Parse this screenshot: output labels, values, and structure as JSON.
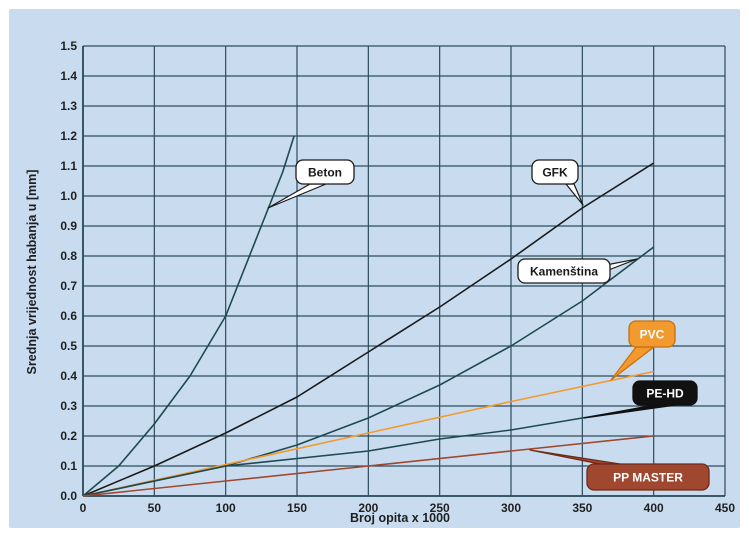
{
  "colors": {
    "background": "#c9dcef",
    "grid": "#2d4b5a",
    "dark_teal": "#1e4a4f",
    "black": "#1a1a1a",
    "pvc_orange": "#f39a2e",
    "pp_brown": "#a0472f",
    "callout_white": "#ffffff",
    "callout_black": "#111111"
  },
  "chart_data": {
    "type": "line",
    "xlabel": "Broj opita x 1000",
    "ylabel": "Srednja vrijednost habanja u [mm]",
    "xlim": [
      0,
      450
    ],
    "ylim": [
      0,
      1.5
    ],
    "x_ticks": [
      "0",
      "50",
      "100",
      "150",
      "200",
      "250",
      "300",
      "350",
      "400",
      "450"
    ],
    "y_ticks": [
      "0.0",
      "0.1",
      "0.2",
      "0.3",
      "0.4",
      "0.5",
      "0.6",
      "0.7",
      "0.8",
      "0.9",
      "1.0",
      "1.1",
      "1.2",
      "1.3",
      "1.4",
      "1.5"
    ],
    "grid": true,
    "series": [
      {
        "name": "Beton",
        "color": "#1e4a4f",
        "points": [
          [
            0,
            0
          ],
          [
            25,
            0.1
          ],
          [
            50,
            0.24
          ],
          [
            75,
            0.4
          ],
          [
            100,
            0.6
          ],
          [
            125,
            0.9
          ],
          [
            140,
            1.08
          ],
          [
            148,
            1.2
          ]
        ]
      },
      {
        "name": "GFK",
        "color": "#1a1a1a",
        "points": [
          [
            0,
            0
          ],
          [
            50,
            0.1
          ],
          [
            100,
            0.21
          ],
          [
            150,
            0.33
          ],
          [
            200,
            0.48
          ],
          [
            250,
            0.63
          ],
          [
            300,
            0.79
          ],
          [
            350,
            0.96
          ],
          [
            400,
            1.11
          ]
        ]
      },
      {
        "name": "Kamenština",
        "color": "#1e4a4f",
        "points": [
          [
            0,
            0
          ],
          [
            50,
            0.05
          ],
          [
            100,
            0.1
          ],
          [
            150,
            0.17
          ],
          [
            200,
            0.26
          ],
          [
            250,
            0.37
          ],
          [
            300,
            0.5
          ],
          [
            350,
            0.65
          ],
          [
            400,
            0.83
          ]
        ]
      },
      {
        "name": "PVC",
        "color": "#f39a2e",
        "points": [
          [
            0,
            0
          ],
          [
            100,
            0.105
          ],
          [
            200,
            0.21
          ],
          [
            300,
            0.315
          ],
          [
            400,
            0.415
          ]
        ]
      },
      {
        "name": "PE-HD",
        "color": "#1e4a4f",
        "points": [
          [
            0,
            0
          ],
          [
            100,
            0.1
          ],
          [
            200,
            0.15
          ],
          [
            250,
            0.19
          ],
          [
            300,
            0.22
          ],
          [
            350,
            0.26
          ],
          [
            400,
            0.3
          ]
        ]
      },
      {
        "name": "PP MASTER",
        "color": "#a0472f",
        "points": [
          [
            0,
            0
          ],
          [
            100,
            0.05
          ],
          [
            200,
            0.1
          ],
          [
            300,
            0.15
          ],
          [
            400,
            0.2
          ]
        ]
      }
    ],
    "callouts": [
      {
        "text": "Beton",
        "style": "white"
      },
      {
        "text": "GFK",
        "style": "white"
      },
      {
        "text": "Kamenština",
        "style": "white"
      },
      {
        "text": "PVC",
        "style": "orange"
      },
      {
        "text": "PE-HD",
        "style": "black"
      },
      {
        "text": "PP MASTER",
        "style": "brown"
      }
    ]
  }
}
